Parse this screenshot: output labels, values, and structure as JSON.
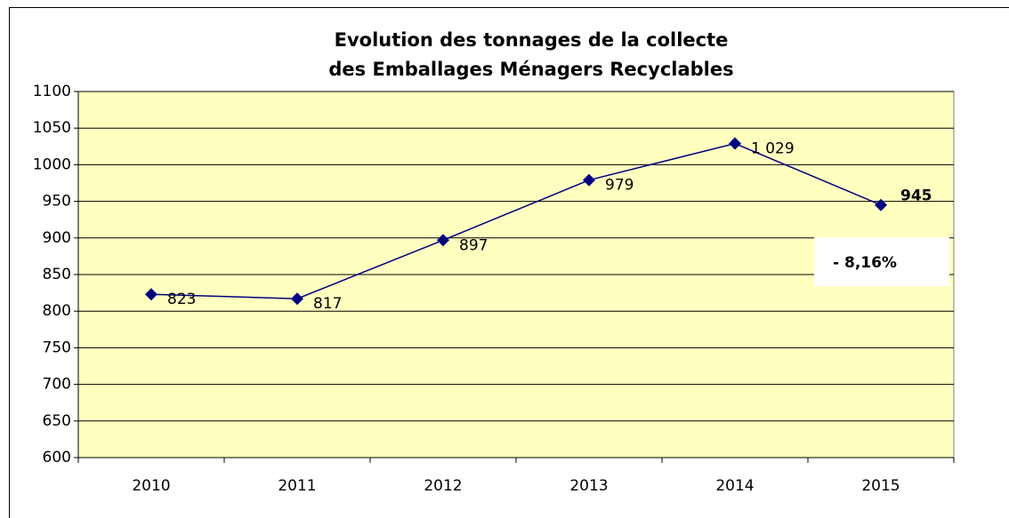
{
  "chart_data": {
    "type": "line",
    "title": [
      "Evolution des tonnages de la collecte",
      "des Emballages Ménagers Recyclables"
    ],
    "categories": [
      "2010",
      "2011",
      "2012",
      "2013",
      "2014",
      "2015"
    ],
    "series": [
      {
        "name": "Tonnages",
        "color": "#000080",
        "values": [
          823,
          817,
          897,
          979,
          1029,
          945
        ],
        "value_labels": [
          "823",
          "817",
          "897",
          "979",
          "1 029",
          "945"
        ]
      }
    ],
    "ylim": [
      600,
      1100
    ],
    "yticks": [
      600,
      650,
      700,
      750,
      800,
      850,
      900,
      950,
      1000,
      1050,
      1100
    ],
    "grid": true,
    "plot_background": "#ffffc0",
    "annotation": {
      "text": "- 8,16%",
      "color": "#ff0000"
    }
  }
}
